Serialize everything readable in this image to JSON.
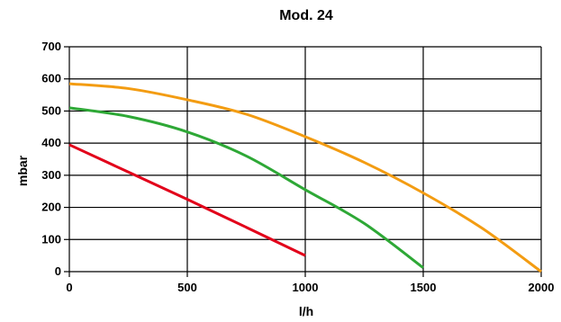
{
  "chart_data": {
    "type": "line",
    "title": "Mod. 24",
    "xlabel": "l/h",
    "ylabel": "mbar",
    "xlim": [
      0,
      2000
    ],
    "ylim": [
      0,
      700
    ],
    "x_ticks": [
      0,
      500,
      1000,
      1500,
      2000
    ],
    "y_ticks": [
      0,
      100,
      200,
      300,
      400,
      500,
      600,
      700
    ],
    "grid": true,
    "series": [
      {
        "color": "#e2001a",
        "x": [
          0,
          250,
          500,
          750,
          1000
        ],
        "y": [
          395,
          310,
          225,
          138,
          50
        ]
      },
      {
        "color": "#2ea836",
        "x": [
          0,
          250,
          500,
          750,
          1000,
          1250,
          1500
        ],
        "y": [
          510,
          483,
          435,
          360,
          255,
          150,
          12
        ]
      },
      {
        "color": "#f39c12",
        "x": [
          0,
          250,
          500,
          750,
          1000,
          1250,
          1500,
          1750,
          2000
        ],
        "y": [
          585,
          570,
          535,
          490,
          420,
          340,
          245,
          135,
          0
        ]
      }
    ]
  }
}
